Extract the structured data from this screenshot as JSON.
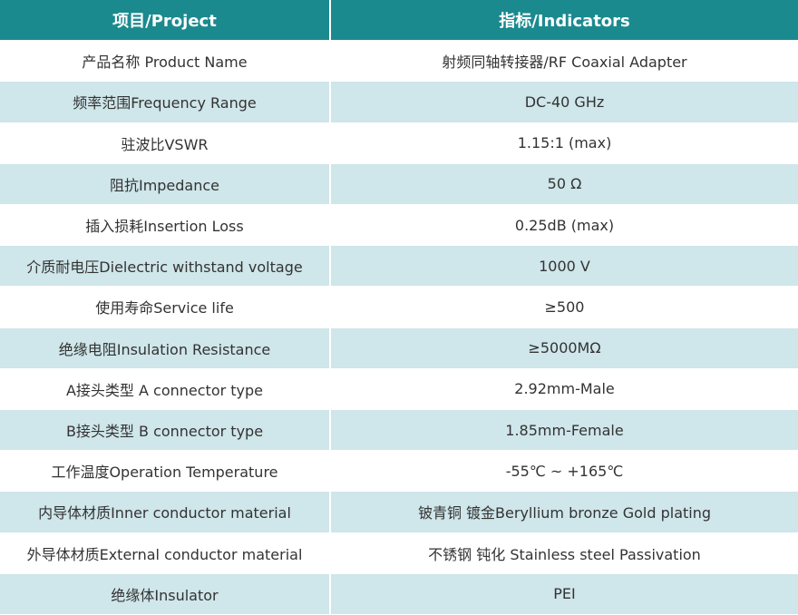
{
  "table": {
    "header": [
      "项目/Project",
      "指标/Indicators"
    ],
    "rows": [
      [
        "产品名称 Product Name",
        "射频同轴转接器/RF Coaxial Adapter"
      ],
      [
        "频率范围Frequency Range",
        "DC-40 GHz"
      ],
      [
        "驻波比VSWR",
        "1.15:1 (max)"
      ],
      [
        "阻抗Impedance",
        "50 Ω"
      ],
      [
        "插入损耗Insertion Loss",
        "0.25dB (max)"
      ],
      [
        "介质耐电压Dielectric withstand voltage",
        "1000 V"
      ],
      [
        "使用寿命Service life",
        "≥500"
      ],
      [
        "绝缘电阻Insulation Resistance",
        "≥5000MΩ"
      ],
      [
        "A接头类型 A connector type",
        "2.92mm-Male"
      ],
      [
        "B接头类型 B connector type",
        "1.85mm-Female"
      ],
      [
        "工作温度Operation Temperature",
        "-55℃ ~ +165℃"
      ],
      [
        "内导体材质Inner conductor material",
        "铍青铜 镀金Beryllium bronze Gold plating"
      ],
      [
        "外导体材质External conductor material",
        "不锈钢 钝化 Stainless steel Passivation"
      ],
      [
        "绝缘体Insulator",
        "PEI"
      ]
    ]
  }
}
